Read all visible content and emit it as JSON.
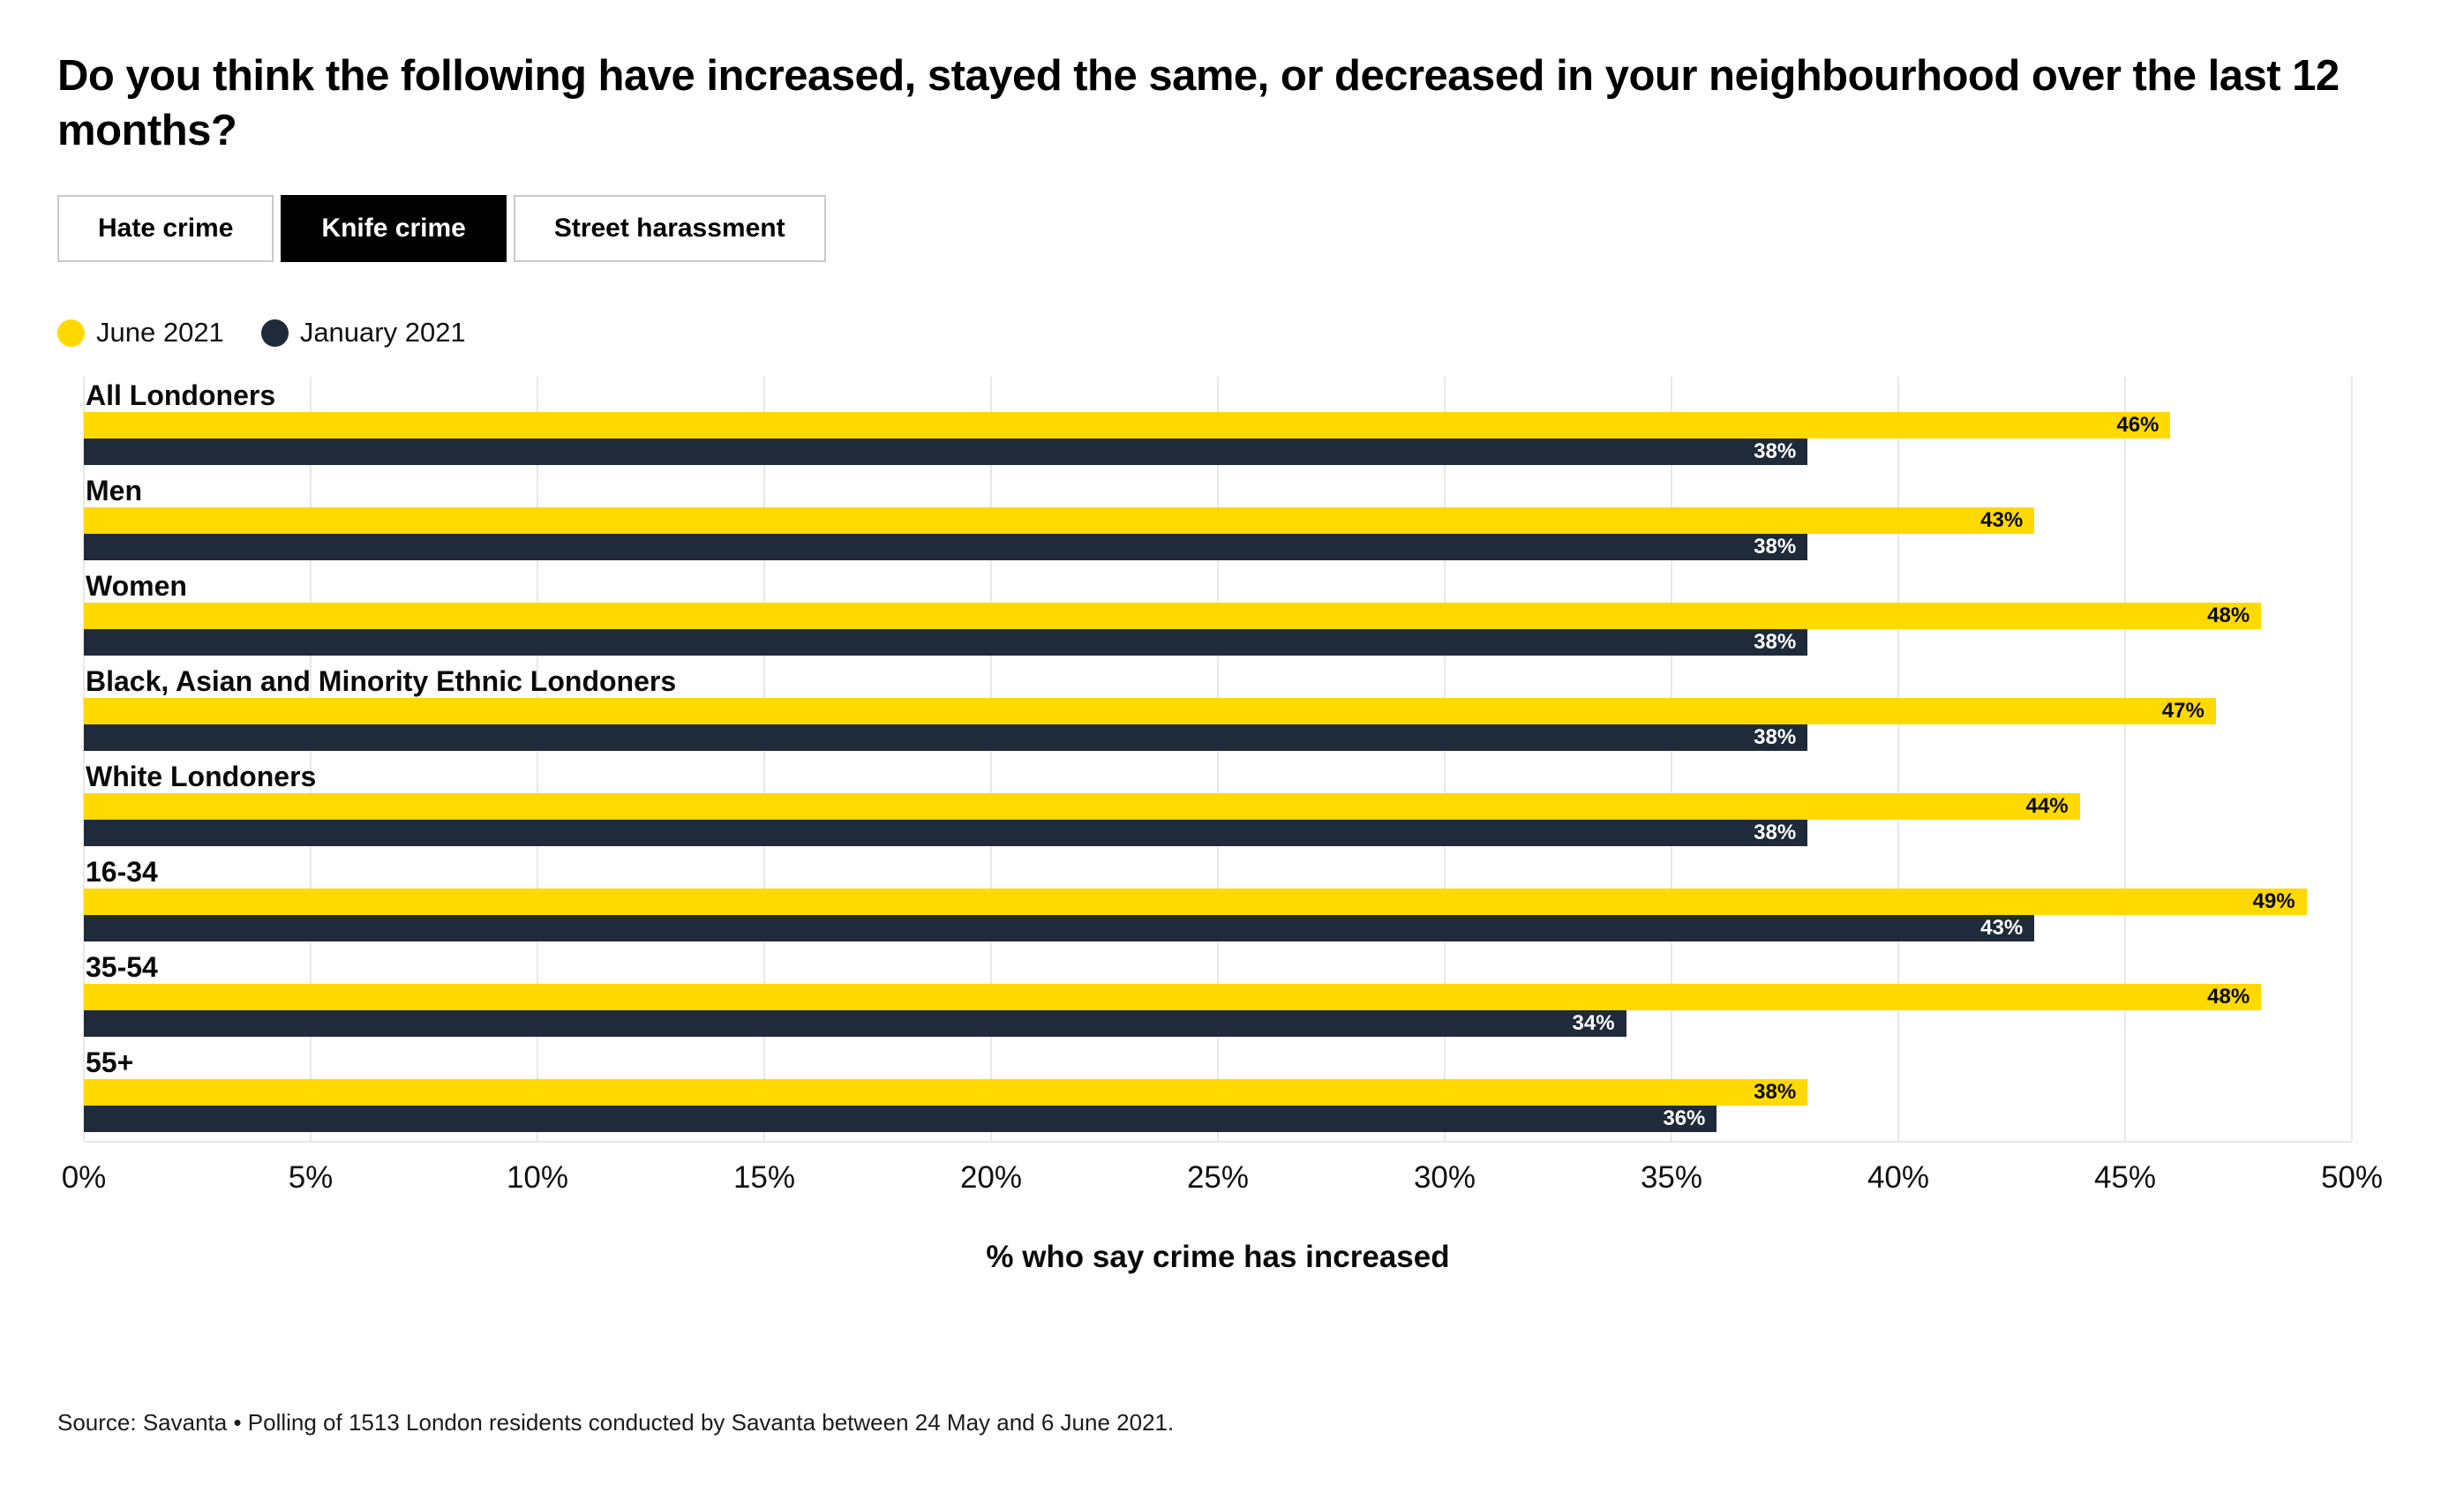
{
  "title": "Do you think the following have increased, stayed the same, or decreased in your neighbourhood over the last 12 months?",
  "tabs": [
    {
      "label": "Hate crime",
      "active": false
    },
    {
      "label": "Knife crime",
      "active": true
    },
    {
      "label": "Street harassment",
      "active": false
    }
  ],
  "legend": [
    {
      "label": "June 2021",
      "color": "#FFD900"
    },
    {
      "label": "January 2021",
      "color": "#1F2A3A"
    }
  ],
  "chart_data": {
    "type": "bar",
    "orientation": "horizontal",
    "title": "Knife crime",
    "categories": [
      "All Londoners",
      "Men",
      "Women",
      "Black, Asian and Minority Ethnic Londoners",
      "White Londoners",
      "16-34",
      "35-54",
      "55+"
    ],
    "series": [
      {
        "name": "June 2021",
        "color": "#FFD900",
        "label_color": "#0a0a0a",
        "values": [
          46,
          43,
          48,
          47,
          44,
          49,
          48,
          38
        ]
      },
      {
        "name": "January 2021",
        "color": "#1F2A3A",
        "label_color": "#ffffff",
        "values": [
          38,
          38,
          38,
          38,
          38,
          43,
          34,
          36
        ]
      }
    ],
    "value_suffix": "%",
    "xlabel": "% who say crime has increased",
    "xlim": [
      0,
      50
    ],
    "ticks": [
      "0%",
      "5%",
      "10%",
      "15%",
      "20%",
      "25%",
      "30%",
      "35%",
      "40%",
      "45%",
      "50%"
    ],
    "grid": true,
    "legend_position": "top-left"
  },
  "source": "Source: Savanta • Polling of 1513 London residents conducted by Savanta between 24 May and 6 June 2021.",
  "colors": {
    "grid": "#e8e8e8",
    "tab_active_bg": "#000000",
    "tab_border": "#c9c9c9",
    "background": "#ffffff"
  }
}
